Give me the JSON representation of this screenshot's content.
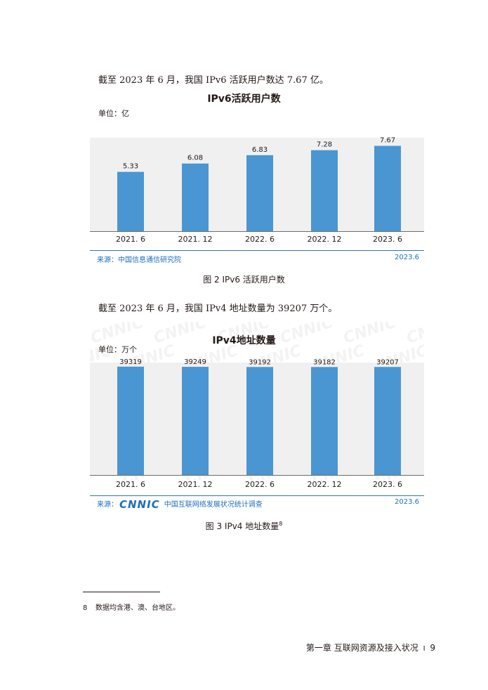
{
  "paragraphs": {
    "p1": "截至 2023 年 6 月，我国 IPv6 活跃用户数达 7.67 亿。",
    "p2": "截至 2023 年 6 月，我国 IPv4 地址数量为 39207 万个。"
  },
  "figure1": {
    "caption": "图 2  IPv6 活跃用户数",
    "source": "来源：中国信息通信研究院",
    "source_date": "2023.6"
  },
  "figure2": {
    "caption": "图 3  IPv4 地址数量",
    "footnote_ref": "8",
    "source_prefix": "来源：",
    "source_logo": "CNNIC",
    "source": "中国互联网络发展状况统计调查",
    "source_date": "2023.6",
    "watermark": "CNNIC"
  },
  "chart_data": [
    {
      "type": "bar",
      "title": "IPv6活跃用户数",
      "unit_label": "单位：亿",
      "categories": [
        "2021. 6",
        "2021. 12",
        "2022. 6",
        "2022. 12",
        "2023. 6"
      ],
      "values": [
        5.33,
        6.08,
        6.83,
        7.28,
        7.67
      ],
      "value_labels": [
        "5.33",
        "6.08",
        "6.83",
        "7.28",
        "7.67"
      ],
      "ylim": [
        0,
        8.4
      ],
      "color": "#4a96d2",
      "grid": false
    },
    {
      "type": "bar",
      "title": "IPv4地址数量",
      "unit_label": "单位：万个",
      "categories": [
        "2021. 6",
        "2021. 12",
        "2022. 6",
        "2022. 12",
        "2023. 6"
      ],
      "values": [
        39319,
        39249,
        39192,
        39182,
        39207
      ],
      "value_labels": [
        "39319",
        "39249",
        "39192",
        "39182",
        "39207"
      ],
      "ylim": [
        0,
        40800
      ],
      "color": "#4a96d2",
      "grid": false
    }
  ],
  "footnote": {
    "number": "8",
    "text": "数据均含港、澳、台地区。"
  },
  "footer": {
    "chapter": "第一章  互联网资源及接入状况",
    "separator": "I",
    "page": "9"
  }
}
